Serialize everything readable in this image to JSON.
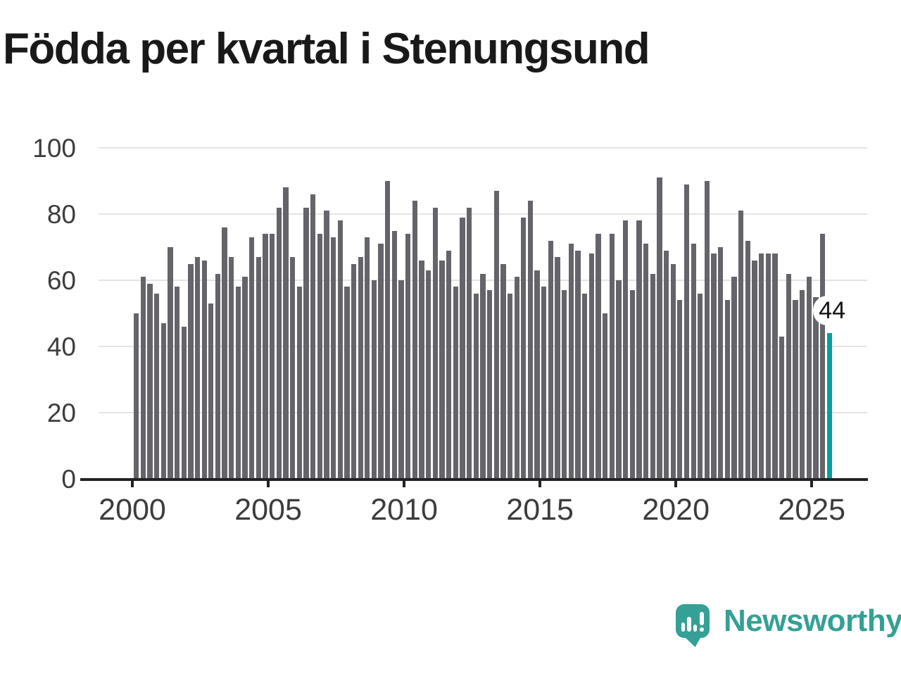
{
  "title": "Födda per kvartal i Stenungsund",
  "annotation": {
    "label": "44"
  },
  "branding": {
    "name": "Newsworthy",
    "icon": "newsworthy-speech-bubble-chart-icon",
    "color": "#35a095"
  },
  "colors": {
    "bar": "#64646a",
    "highlight": "#00a0a0",
    "grid": "#e4e4e4",
    "axis": "#222225",
    "tick_text": "#3c3c3c",
    "title_text": "#191919"
  },
  "chart_data": {
    "type": "bar",
    "title": "Födda per kvartal i Stenungsund",
    "xlabel": "",
    "ylabel": "",
    "x_unit": "quarter",
    "x_start": "2000-Q1",
    "x_end": "2025-Q3",
    "ylim": [
      0,
      100
    ],
    "y_ticks": [
      0,
      20,
      40,
      60,
      80,
      100
    ],
    "x_tick_years": [
      2000,
      2005,
      2010,
      2015,
      2020,
      2025
    ],
    "grid": "horizontal",
    "legend": "none",
    "highlight_index": 102,
    "highlight_label": "44",
    "series": [
      {
        "name": "Födda per kvartal",
        "values": [
          50,
          61,
          59,
          56,
          47,
          70,
          58,
          46,
          65,
          67,
          66,
          53,
          62,
          76,
          67,
          58,
          61,
          73,
          67,
          74,
          74,
          82,
          88,
          67,
          58,
          82,
          86,
          74,
          81,
          73,
          78,
          58,
          65,
          67,
          73,
          60,
          71,
          90,
          75,
          60,
          74,
          84,
          66,
          63,
          82,
          66,
          69,
          58,
          79,
          82,
          56,
          62,
          57,
          87,
          65,
          56,
          61,
          79,
          84,
          63,
          58,
          72,
          67,
          57,
          71,
          69,
          56,
          68,
          74,
          50,
          74,
          60,
          78,
          57,
          78,
          71,
          62,
          91,
          69,
          65,
          54,
          89,
          71,
          56,
          90,
          68,
          70,
          54,
          61,
          81,
          72,
          66,
          68,
          68,
          68,
          43,
          62,
          54,
          57,
          61,
          55,
          74,
          44
        ]
      }
    ]
  }
}
